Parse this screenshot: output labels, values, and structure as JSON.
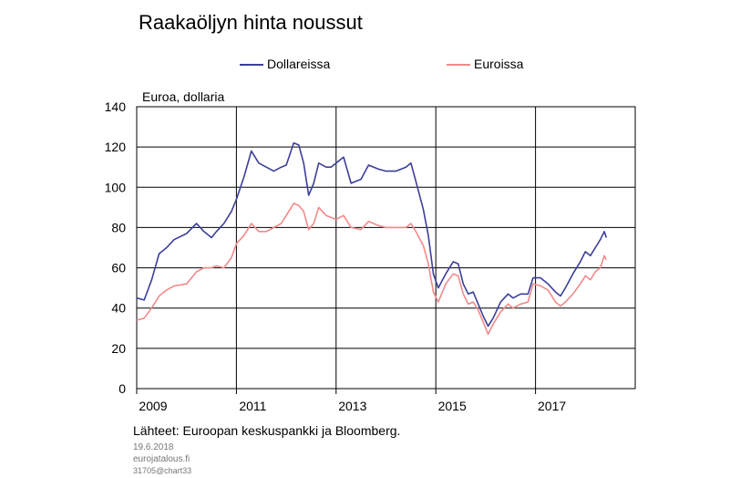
{
  "page": {
    "title": "Raakaöljyn hinta noussut",
    "source": "Lähteet: Euroopan keskuspankki  ja Bloomberg.",
    "date": "19.6.2018",
    "site": "eurojatalous.fi",
    "code": "31705@chart33"
  },
  "chart_data": {
    "type": "line",
    "title": "Raakaöljyn hinta noussut",
    "ylabel": "Euroa, dollaria",
    "xlabel": "",
    "ylim": [
      0,
      140
    ],
    "xlim": [
      2009.0,
      2019.0
    ],
    "yticks": [
      0,
      20,
      40,
      60,
      80,
      100,
      120,
      140
    ],
    "xticks": [
      {
        "label": "2009",
        "x": 2009.0
      },
      {
        "label": "2011",
        "x": 2011.0
      },
      {
        "label": "2013",
        "x": 2013.0
      },
      {
        "label": "2015",
        "x": 2015.0
      },
      {
        "label": "2017",
        "x": 2017.0
      }
    ],
    "grid": true,
    "legend_position": "top",
    "series": [
      {
        "name": "Dollareissa",
        "color": "#3b3f98",
        "points": [
          [
            2009.0,
            45
          ],
          [
            2009.15,
            44
          ],
          [
            2009.3,
            54
          ],
          [
            2009.45,
            67
          ],
          [
            2009.6,
            70
          ],
          [
            2009.75,
            74
          ],
          [
            2010.0,
            77
          ],
          [
            2010.2,
            82
          ],
          [
            2010.35,
            78
          ],
          [
            2010.5,
            75
          ],
          [
            2010.6,
            78
          ],
          [
            2010.75,
            82
          ],
          [
            2010.9,
            88
          ],
          [
            2011.0,
            94
          ],
          [
            2011.15,
            105
          ],
          [
            2011.3,
            118
          ],
          [
            2011.45,
            112
          ],
          [
            2011.6,
            110
          ],
          [
            2011.75,
            108
          ],
          [
            2011.9,
            110
          ],
          [
            2012.0,
            111
          ],
          [
            2012.15,
            122
          ],
          [
            2012.25,
            121
          ],
          [
            2012.35,
            112
          ],
          [
            2012.45,
            96
          ],
          [
            2012.55,
            102
          ],
          [
            2012.65,
            112
          ],
          [
            2012.8,
            110
          ],
          [
            2012.9,
            110
          ],
          [
            2013.0,
            112
          ],
          [
            2013.15,
            115
          ],
          [
            2013.3,
            102
          ],
          [
            2013.5,
            104
          ],
          [
            2013.65,
            111
          ],
          [
            2013.85,
            109
          ],
          [
            2014.0,
            108
          ],
          [
            2014.2,
            108
          ],
          [
            2014.4,
            110
          ],
          [
            2014.5,
            112
          ],
          [
            2014.6,
            103
          ],
          [
            2014.75,
            89
          ],
          [
            2014.85,
            76
          ],
          [
            2014.95,
            57
          ],
          [
            2015.05,
            50
          ],
          [
            2015.2,
            57
          ],
          [
            2015.35,
            63
          ],
          [
            2015.45,
            62
          ],
          [
            2015.55,
            52
          ],
          [
            2015.65,
            47
          ],
          [
            2015.75,
            48
          ],
          [
            2015.85,
            42
          ],
          [
            2015.95,
            36
          ],
          [
            2016.05,
            31
          ],
          [
            2016.15,
            35
          ],
          [
            2016.3,
            43
          ],
          [
            2016.45,
            47
          ],
          [
            2016.55,
            45
          ],
          [
            2016.7,
            47
          ],
          [
            2016.85,
            47
          ],
          [
            2016.95,
            55
          ],
          [
            2017.1,
            55
          ],
          [
            2017.25,
            52
          ],
          [
            2017.4,
            48
          ],
          [
            2017.5,
            46
          ],
          [
            2017.6,
            50
          ],
          [
            2017.75,
            57
          ],
          [
            2017.9,
            63
          ],
          [
            2018.0,
            68
          ],
          [
            2018.1,
            66
          ],
          [
            2018.2,
            70
          ],
          [
            2018.3,
            74
          ],
          [
            2018.38,
            78
          ],
          [
            2018.42,
            75
          ]
        ]
      },
      {
        "name": "Euroissa",
        "color": "#f08a8a",
        "points": [
          [
            2009.0,
            34
          ],
          [
            2009.15,
            35
          ],
          [
            2009.3,
            40
          ],
          [
            2009.45,
            46
          ],
          [
            2009.6,
            49
          ],
          [
            2009.75,
            51
          ],
          [
            2010.0,
            52
          ],
          [
            2010.2,
            58
          ],
          [
            2010.35,
            60
          ],
          [
            2010.5,
            60
          ],
          [
            2010.6,
            61
          ],
          [
            2010.75,
            60
          ],
          [
            2010.9,
            65
          ],
          [
            2011.0,
            72
          ],
          [
            2011.15,
            76
          ],
          [
            2011.3,
            82
          ],
          [
            2011.45,
            78
          ],
          [
            2011.6,
            78
          ],
          [
            2011.75,
            80
          ],
          [
            2011.9,
            82
          ],
          [
            2012.0,
            86
          ],
          [
            2012.15,
            92
          ],
          [
            2012.25,
            91
          ],
          [
            2012.35,
            88
          ],
          [
            2012.45,
            79
          ],
          [
            2012.55,
            82
          ],
          [
            2012.65,
            90
          ],
          [
            2012.8,
            86
          ],
          [
            2012.9,
            85
          ],
          [
            2013.0,
            84
          ],
          [
            2013.15,
            86
          ],
          [
            2013.3,
            80
          ],
          [
            2013.5,
            79
          ],
          [
            2013.65,
            83
          ],
          [
            2013.85,
            81
          ],
          [
            2014.0,
            80
          ],
          [
            2014.2,
            80
          ],
          [
            2014.4,
            80
          ],
          [
            2014.5,
            82
          ],
          [
            2014.6,
            78
          ],
          [
            2014.75,
            71
          ],
          [
            2014.85,
            62
          ],
          [
            2014.95,
            48
          ],
          [
            2015.05,
            43
          ],
          [
            2015.2,
            52
          ],
          [
            2015.35,
            57
          ],
          [
            2015.45,
            56
          ],
          [
            2015.55,
            47
          ],
          [
            2015.65,
            42
          ],
          [
            2015.75,
            43
          ],
          [
            2015.85,
            39
          ],
          [
            2015.95,
            33
          ],
          [
            2016.05,
            27
          ],
          [
            2016.15,
            32
          ],
          [
            2016.3,
            38
          ],
          [
            2016.45,
            42
          ],
          [
            2016.55,
            40
          ],
          [
            2016.7,
            42
          ],
          [
            2016.85,
            43
          ],
          [
            2016.95,
            52
          ],
          [
            2017.1,
            51
          ],
          [
            2017.25,
            49
          ],
          [
            2017.4,
            43
          ],
          [
            2017.5,
            41
          ],
          [
            2017.6,
            43
          ],
          [
            2017.75,
            47
          ],
          [
            2017.9,
            52
          ],
          [
            2018.0,
            56
          ],
          [
            2018.1,
            54
          ],
          [
            2018.2,
            58
          ],
          [
            2018.3,
            60
          ],
          [
            2018.38,
            66
          ],
          [
            2018.42,
            64
          ]
        ]
      }
    ]
  }
}
